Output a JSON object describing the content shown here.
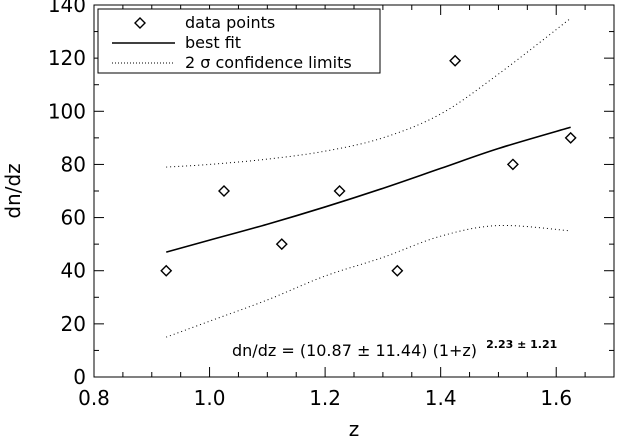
{
  "chart_data": {
    "type": "scatter",
    "xlabel": "z",
    "ylabel": "dn/dz",
    "xlim": [
      0.8,
      1.7
    ],
    "ylim": [
      0,
      140
    ],
    "x_ticks": [
      0.8,
      1.0,
      1.2,
      1.4,
      1.6
    ],
    "x_tick_labels": [
      "0.8",
      "1.0",
      "1.2",
      "1.4",
      "1.6"
    ],
    "y_ticks": [
      0,
      20,
      40,
      60,
      80,
      100,
      120,
      140
    ],
    "y_tick_labels": [
      "0",
      "20",
      "40",
      "60",
      "80",
      "100",
      "120",
      "140"
    ],
    "grid": false,
    "legend_position": "top-left",
    "series": [
      {
        "name": "data points",
        "marker": "diamond",
        "x": [
          0.925,
          1.025,
          1.125,
          1.225,
          1.325,
          1.425,
          1.525,
          1.625
        ],
        "y": [
          40,
          70,
          50,
          70,
          40,
          119,
          80,
          90
        ]
      },
      {
        "name": "best fit",
        "style": "solid",
        "x": [
          0.925,
          1.0,
          1.1,
          1.2,
          1.3,
          1.4,
          1.5,
          1.625
        ],
        "y": [
          47,
          51.5,
          57.5,
          64.0,
          71.0,
          78.5,
          86.0,
          94
        ]
      },
      {
        "name": "2 σ confidence limits",
        "style": "dotted",
        "upper": {
          "x": [
            0.925,
            1.0,
            1.1,
            1.2,
            1.3,
            1.4,
            1.5,
            1.625
          ],
          "y": [
            79,
            80,
            82,
            85,
            90,
            99,
            114,
            135
          ]
        },
        "lower": {
          "x": [
            0.925,
            1.0,
            1.1,
            1.2,
            1.3,
            1.4,
            1.5,
            1.625
          ],
          "y": [
            15,
            21,
            29,
            38,
            45,
            53,
            57,
            55
          ]
        }
      }
    ],
    "annotation": {
      "main": "dn/dz = (10.87 ± 11.44) (1+z)",
      "exponent": "2.23 ± 1.21"
    }
  }
}
